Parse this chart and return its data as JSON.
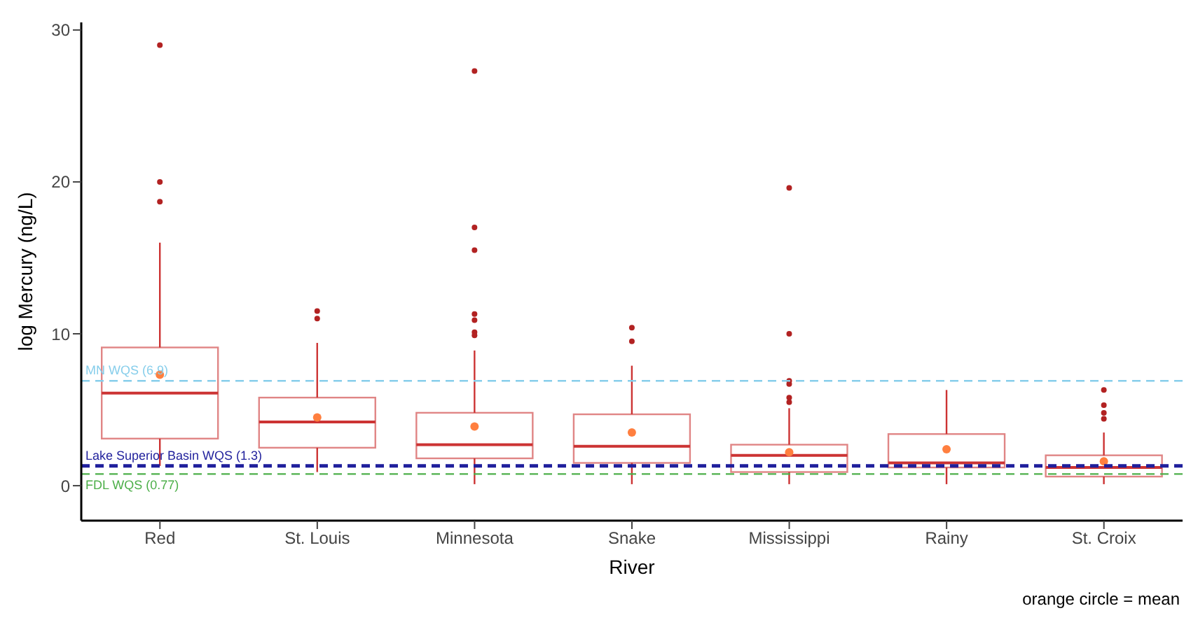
{
  "chart_data": {
    "type": "box",
    "xlabel": "River",
    "ylabel": "log Mercury (ng/L)",
    "categories": [
      "Red",
      "St. Louis",
      "Minnesota",
      "Snake",
      "Mississippi",
      "Rainy",
      "St. Croix"
    ],
    "color": "#cc3333",
    "boxes": [
      {
        "low": 1.3,
        "q1": 3.1,
        "median": 6.1,
        "q3": 9.1,
        "high": 16.0,
        "mean": 7.3,
        "outliers": [
          29.0,
          20.0,
          18.7
        ]
      },
      {
        "low": 0.9,
        "q1": 2.5,
        "median": 4.2,
        "q3": 5.8,
        "high": 9.4,
        "mean": 4.5,
        "outliers": [
          11.5,
          11.0
        ]
      },
      {
        "low": 0.1,
        "q1": 1.8,
        "median": 2.7,
        "q3": 4.8,
        "high": 8.9,
        "mean": 3.9,
        "outliers": [
          27.3,
          17.0,
          15.5,
          11.3,
          10.9,
          10.1,
          9.9
        ]
      },
      {
        "low": 0.1,
        "q1": 1.5,
        "median": 2.6,
        "q3": 4.7,
        "high": 7.9,
        "mean": 3.5,
        "outliers": [
          10.4,
          9.5
        ]
      },
      {
        "low": 0.1,
        "q1": 0.9,
        "median": 2.0,
        "q3": 2.7,
        "high": 5.1,
        "mean": 2.2,
        "outliers": [
          19.6,
          10.0,
          6.9,
          6.7,
          5.8,
          5.5
        ]
      },
      {
        "low": 0.1,
        "q1": 1.2,
        "median": 1.5,
        "q3": 3.4,
        "high": 6.3,
        "mean": 2.4
      },
      {
        "low": 0.1,
        "q1": 0.6,
        "median": 1.2,
        "q3": 2.0,
        "high": 3.5,
        "mean": 1.6,
        "outliers": [
          6.3,
          5.3,
          4.8,
          4.4
        ]
      }
    ],
    "ylim": [
      -2.3,
      30.5
    ],
    "yticks": [
      0,
      10,
      20,
      30
    ],
    "ref_lines": [
      {
        "axis": "y",
        "value": 6.9,
        "label": "MN WQS (6.9)",
        "color": "#87ceeb",
        "line_style": "dashed"
      },
      {
        "axis": "y",
        "value": 1.3,
        "label": "Lake Superior Basin WQS (1.3)",
        "color": "#1f1f9c",
        "line_style": "dashed"
      },
      {
        "axis": "y",
        "value": 0.77,
        "label": "FDL WQS (0.77)",
        "color": "#4daf4a",
        "line_style": "dashed"
      }
    ],
    "annotations": [
      "orange circle = mean"
    ]
  }
}
